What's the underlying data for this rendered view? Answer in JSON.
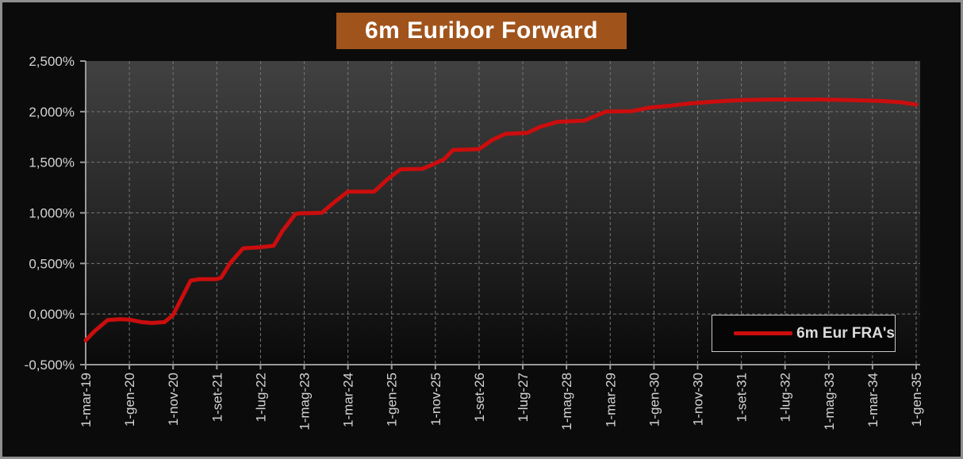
{
  "window": {
    "frame_border_color": "#8f8f8f",
    "background_color": "#0b0b0b"
  },
  "chart": {
    "title": "6m Euribor Forward"
  },
  "legend": {
    "series_label": "6m Eur FRA's"
  },
  "colors": {
    "title_bg": "#A0541C",
    "title_text": "#ffffff",
    "series_red": "#CC0D0D",
    "grid_line": "#757575",
    "axis_line": "#9a9a9a",
    "tick_label": "#d4d4d4",
    "legend_bg": "#060606",
    "legend_border": "#c8c8c8",
    "legend_text": "#dcdcdc",
    "plot_gradient_top": "#414141",
    "plot_gradient_mid": "#242424",
    "plot_gradient_bottom": "#0a0a0a"
  },
  "chart_data": {
    "type": "line",
    "title": "6m Euribor Forward",
    "xlabel": "",
    "ylabel": "",
    "grid": "dashed",
    "legend_position": "bottom-right",
    "ylim": [
      -0.5,
      2.5
    ],
    "y_tick_values": [
      2.5,
      2.0,
      1.5,
      1.0,
      0.5,
      0.0,
      -0.5
    ],
    "y_tick_labels": [
      "2,500%",
      "2,000%",
      "1,500%",
      "1,000%",
      "0,500%",
      "0,000%",
      "-0,500%"
    ],
    "x_tick_labels": [
      "1-mar-19",
      "1-gen-20",
      "1-nov-20",
      "1-set-21",
      "1-lug-22",
      "1-mag-23",
      "1-mar-24",
      "1-gen-25",
      "1-nov-25",
      "1-set-26",
      "1-lug-27",
      "1-mag-28",
      "1-mar-29",
      "1-gen-30",
      "1-nov-30",
      "1-set-31",
      "1-lug-32",
      "1-mag-33",
      "1-mar-34",
      "1-gen-35"
    ],
    "x_tick_positions_months": [
      0,
      10,
      20,
      30,
      40,
      50,
      60,
      70,
      80,
      90,
      100,
      110,
      120,
      130,
      140,
      150,
      160,
      170,
      180,
      190
    ],
    "x_range_months": [
      0,
      190
    ],
    "series": [
      {
        "name": "6m Eur FRA's",
        "color": "#CC0D0D",
        "unit": "percent",
        "points_month_value": [
          [
            0,
            -0.26
          ],
          [
            2,
            -0.17
          ],
          [
            5,
            -0.06
          ],
          [
            8,
            -0.05
          ],
          [
            10,
            -0.055
          ],
          [
            13,
            -0.08
          ],
          [
            15,
            -0.088
          ],
          [
            18,
            -0.08
          ],
          [
            20,
            -0.01
          ],
          [
            22,
            0.16
          ],
          [
            24,
            0.33
          ],
          [
            26,
            0.345
          ],
          [
            30,
            0.345
          ],
          [
            31,
            0.36
          ],
          [
            33,
            0.5
          ],
          [
            36,
            0.65
          ],
          [
            40,
            0.66
          ],
          [
            43,
            0.675
          ],
          [
            45,
            0.82
          ],
          [
            48,
            0.99
          ],
          [
            49,
            0.995
          ],
          [
            54,
            1.0
          ],
          [
            57,
            1.11
          ],
          [
            60,
            1.21
          ],
          [
            66,
            1.21
          ],
          [
            69,
            1.33
          ],
          [
            72,
            1.43
          ],
          [
            77,
            1.435
          ],
          [
            79,
            1.47
          ],
          [
            82,
            1.53
          ],
          [
            84,
            1.62
          ],
          [
            90,
            1.63
          ],
          [
            93,
            1.72
          ],
          [
            96,
            1.78
          ],
          [
            101,
            1.79
          ],
          [
            104,
            1.85
          ],
          [
            108,
            1.9
          ],
          [
            114,
            1.91
          ],
          [
            119,
            2.0
          ],
          [
            125,
            2.005
          ],
          [
            129,
            2.04
          ],
          [
            134,
            2.06
          ],
          [
            138,
            2.08
          ],
          [
            144,
            2.1
          ],
          [
            150,
            2.115
          ],
          [
            158,
            2.12
          ],
          [
            168,
            2.12
          ],
          [
            175,
            2.115
          ],
          [
            182,
            2.105
          ],
          [
            186,
            2.095
          ],
          [
            190,
            2.07
          ]
        ]
      }
    ]
  }
}
